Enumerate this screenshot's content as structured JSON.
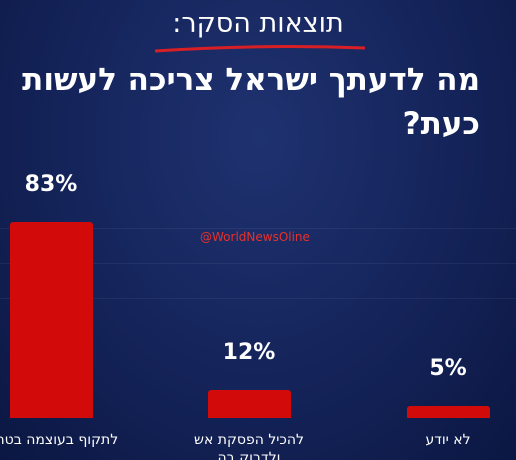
{
  "chart_data": {
    "type": "bar",
    "title": "תוצאות הסקר:",
    "subtitle": "מה לדעתך ישראל צריכה לעשות כעת?",
    "watermark": "@WorldNewsOline",
    "categories": [
      "לתקוף בעוצמה בטהרן",
      "להכיל הפסקת אש ולדבוק בה",
      "לא יודע"
    ],
    "values": [
      83,
      12,
      5
    ],
    "value_labels": [
      "83%",
      "12%",
      "5%"
    ],
    "color": "#d20a0a",
    "ylim": [
      0,
      100
    ]
  }
}
